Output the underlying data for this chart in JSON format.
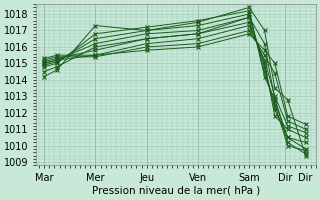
{
  "background_color": "#c8e8d8",
  "grid_color": "#a0c8b8",
  "line_color": "#1a5c1a",
  "marker": "x",
  "xlabel": "Pression niveau de la mer( hPa )",
  "ylim": [
    1008.8,
    1018.6
  ],
  "yticks": [
    1009,
    1010,
    1011,
    1012,
    1013,
    1014,
    1015,
    1016,
    1017,
    1018
  ],
  "series": [
    [
      1014.8,
      1015.0,
      1016.8,
      1017.2,
      1017.6,
      1018.2,
      1014.2,
      1012.8,
      1010.2,
      1009.5
    ],
    [
      1014.9,
      1015.1,
      1016.5,
      1017.0,
      1017.3,
      1018.0,
      1014.5,
      1012.5,
      1010.0,
      1009.7
    ],
    [
      1015.0,
      1015.2,
      1016.2,
      1016.8,
      1017.0,
      1017.8,
      1014.8,
      1012.2,
      1010.5,
      1010.2
    ],
    [
      1015.1,
      1015.3,
      1015.8,
      1016.5,
      1016.8,
      1017.5,
      1015.0,
      1011.8,
      1011.0,
      1010.5
    ],
    [
      1015.0,
      1015.2,
      1015.5,
      1016.2,
      1016.5,
      1017.3,
      1015.2,
      1013.0,
      1011.2,
      1010.8
    ],
    [
      1015.2,
      1015.4,
      1015.4,
      1016.0,
      1016.2,
      1017.0,
      1015.5,
      1014.4,
      1011.5,
      1011.0
    ],
    [
      1015.3,
      1015.5,
      1015.5,
      1015.8,
      1016.0,
      1016.8,
      1015.8,
      1015.0,
      1011.8,
      1011.3
    ],
    [
      1014.5,
      1014.8,
      1016.0,
      1016.5,
      1016.8,
      1017.8,
      1016.2,
      1012.8,
      1010.5,
      1009.8
    ],
    [
      1014.2,
      1014.6,
      1017.3,
      1017.0,
      1017.5,
      1018.4,
      1017.0,
      1013.5,
      1012.8,
      1009.4
    ]
  ],
  "x_positions": [
    0,
    0.5,
    2,
    4,
    6,
    8,
    8.6,
    9.0,
    9.5,
    10.2
  ],
  "xtick_names": [
    "Mar",
    "Mer",
    "Jeu",
    "Ven",
    "Sam",
    "Dir"
  ],
  "xtick_names_positions": [
    0,
    2,
    4,
    6,
    8,
    9.4
  ],
  "vline_positions": [
    0,
    2,
    4,
    6,
    8,
    9.4
  ]
}
